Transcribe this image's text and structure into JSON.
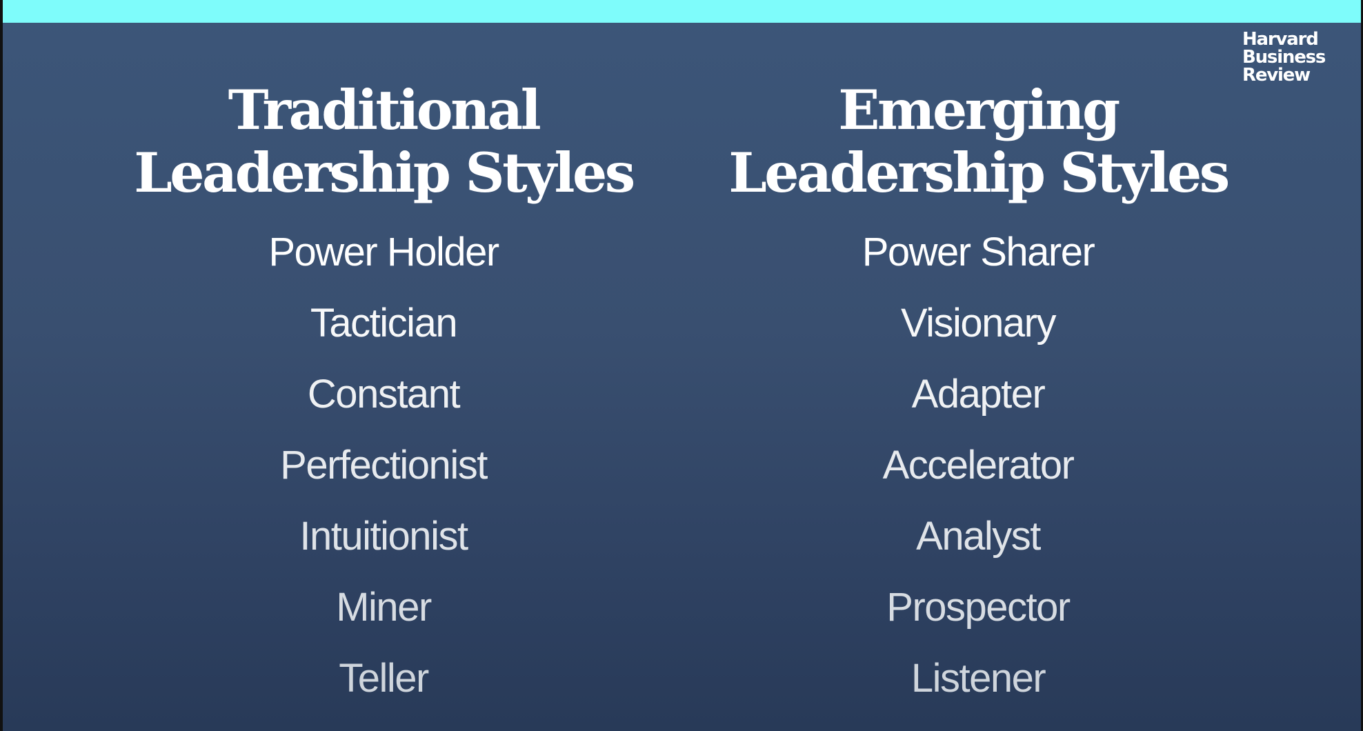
{
  "logo": {
    "lines": [
      "Harvard",
      "Business",
      "Review"
    ]
  },
  "traditional": {
    "heading_line1": "Traditional",
    "heading_line2": "Leadership Styles",
    "items": [
      "Power Holder",
      "Tactician",
      "Constant",
      "Perfectionist",
      "Intuitionist",
      "Miner",
      "Teller"
    ]
  },
  "emerging": {
    "heading_line1": "Emerging",
    "heading_line2": "Leadership Styles",
    "items": [
      "Power Sharer",
      "Visionary",
      "Adapter",
      "Accelerator",
      "Analyst",
      "Prospector",
      "Listener"
    ]
  },
  "colors": {
    "top_bar": "#7efcfb",
    "background_top": "#3c5679",
    "background_bottom": "#283a58",
    "item_text_top": "#ffffff",
    "item_text_bottom": "#cfd5dc"
  }
}
